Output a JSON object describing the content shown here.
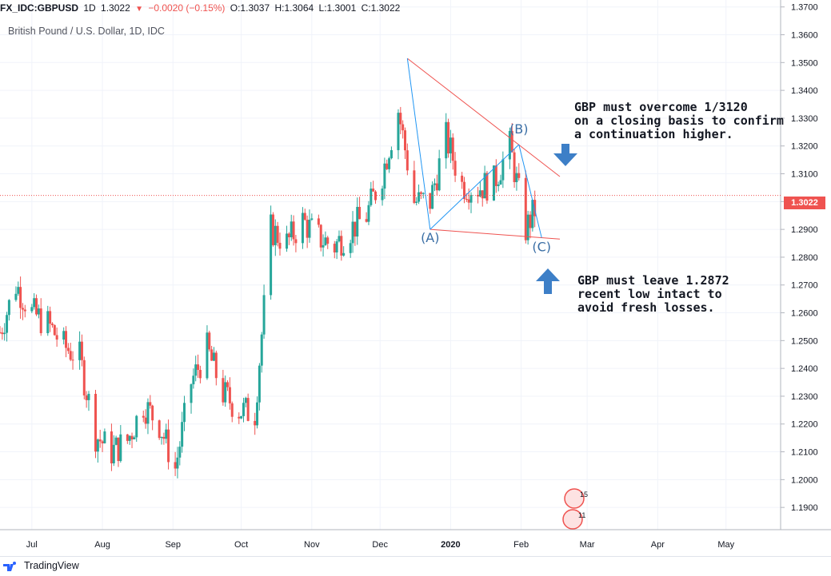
{
  "header": {
    "symbol": "FX_IDC:GBPUSD",
    "interval": "1D",
    "last": "1.3022",
    "change": "−0.0020 (−0.15%)",
    "open": "O:1.3037",
    "high": "H:1.3064",
    "low": "L:1.3001",
    "close": "C:1.3022"
  },
  "instrument_label": "British Pound / U.S. Dollar, 1D, IDC",
  "current_price_label": "1.3022",
  "footer": {
    "brand": "TradingView"
  },
  "colors": {
    "up": "#26a69a",
    "down": "#ef5350",
    "trendline": "#ef5350",
    "wave_line": "#2196f3",
    "arrow": "#3d7fc7",
    "label": "#3a6ea5"
  },
  "events": [
    {
      "icon": "gb-flag-icon",
      "count": "15"
    },
    {
      "icon": "us-flag-icon",
      "count": "11"
    }
  ],
  "annotations": {
    "note_top": "GBP must overcome 1/3120\non a closing basis to confirm\na continuation higher.",
    "note_bottom": "GBP must leave 1.2872\nrecent low intact to\navoid fresh losses.",
    "wave_a": "(A)",
    "wave_b": "(B)",
    "wave_c": "(C)"
  },
  "chart_data": {
    "type": "candlestick",
    "title": "British Pound / U.S. Dollar, 1D, IDC",
    "x_axis_labels": [
      "Jul",
      "Aug",
      "Sep",
      "Oct",
      "Nov",
      "Dec",
      "2020",
      "Feb",
      "Mar",
      "Apr",
      "May"
    ],
    "y_ticks": [
      1.19,
      1.2,
      1.21,
      1.22,
      1.23,
      1.24,
      1.25,
      1.26,
      1.27,
      1.28,
      1.29,
      1.3,
      1.31,
      1.32,
      1.33,
      1.34,
      1.35,
      1.36,
      1.37
    ],
    "y_tick_labels": [
      "1.1900",
      "1.2000",
      "1.2100",
      "1.2200",
      "1.2300",
      "1.2400",
      "1.2500",
      "1.2600",
      "1.2700",
      "1.2800",
      "1.2900",
      "1.3000",
      "1.3100",
      "1.3200",
      "1.3300",
      "1.3400",
      "1.3500",
      "1.3600",
      "1.3700"
    ],
    "ylim": [
      1.182,
      1.3725
    ],
    "date_range": [
      "2019-06-17",
      "2020-05-25"
    ],
    "current_price": 1.3022,
    "closes": [
      [
        "2019-06-17",
        1.253
      ],
      [
        "2019-06-24",
        1.27
      ],
      [
        "2019-07-01",
        1.26
      ],
      [
        "2019-07-08",
        1.256
      ],
      [
        "2019-07-15",
        1.248
      ],
      [
        "2019-07-22",
        1.244
      ],
      [
        "2019-07-29",
        1.216
      ],
      [
        "2019-08-05",
        1.21
      ],
      [
        "2019-08-12",
        1.214
      ],
      [
        "2019-08-19",
        1.227
      ],
      [
        "2019-08-26",
        1.22
      ],
      [
        "2019-09-02",
        1.204
      ],
      [
        "2019-09-09",
        1.235
      ],
      [
        "2019-09-16",
        1.247
      ],
      [
        "2019-09-23",
        1.231
      ],
      [
        "2019-09-30",
        1.225
      ],
      [
        "2019-10-07",
        1.224
      ],
      [
        "2019-10-14",
        1.29
      ],
      [
        "2019-10-21",
        1.285
      ],
      [
        "2019-10-28",
        1.293
      ],
      [
        "2019-11-04",
        1.287
      ],
      [
        "2019-11-11",
        1.284
      ],
      [
        "2019-11-18",
        1.29
      ],
      [
        "2019-11-25",
        1.295
      ],
      [
        "2019-12-02",
        1.31
      ],
      [
        "2019-12-09",
        1.333
      ],
      [
        "2019-12-16",
        1.3
      ],
      [
        "2019-12-23",
        1.3
      ],
      [
        "2019-12-30",
        1.323
      ],
      [
        "2020-01-06",
        1.306
      ],
      [
        "2020-01-13",
        1.305
      ],
      [
        "2020-01-20",
        1.307
      ],
      [
        "2020-01-27",
        1.32
      ],
      [
        "2020-02-03",
        1.29
      ],
      [
        "2020-02-10",
        1.3022
      ]
    ],
    "trendlines": [
      {
        "name": "upper resistance",
        "from": [
          "2019-12-13",
          1.3515
        ],
        "to": [
          "2020-02-18",
          1.309
        ]
      },
      {
        "name": "lower support",
        "from": [
          "2019-12-23",
          1.29
        ],
        "to": [
          "2020-02-18",
          1.2865
        ]
      },
      {
        "name": "A-B",
        "from": [
          "2019-12-23",
          1.29
        ],
        "to": [
          "2020-01-31",
          1.3205
        ]
      },
      {
        "name": "peak-A",
        "from": [
          "2019-12-13",
          1.3515
        ],
        "to": [
          "2019-12-23",
          1.29
        ]
      },
      {
        "name": "B-C",
        "from": [
          "2020-01-31",
          1.3205
        ],
        "to": [
          "2020-02-10",
          1.287
        ]
      }
    ],
    "grid": true
  }
}
